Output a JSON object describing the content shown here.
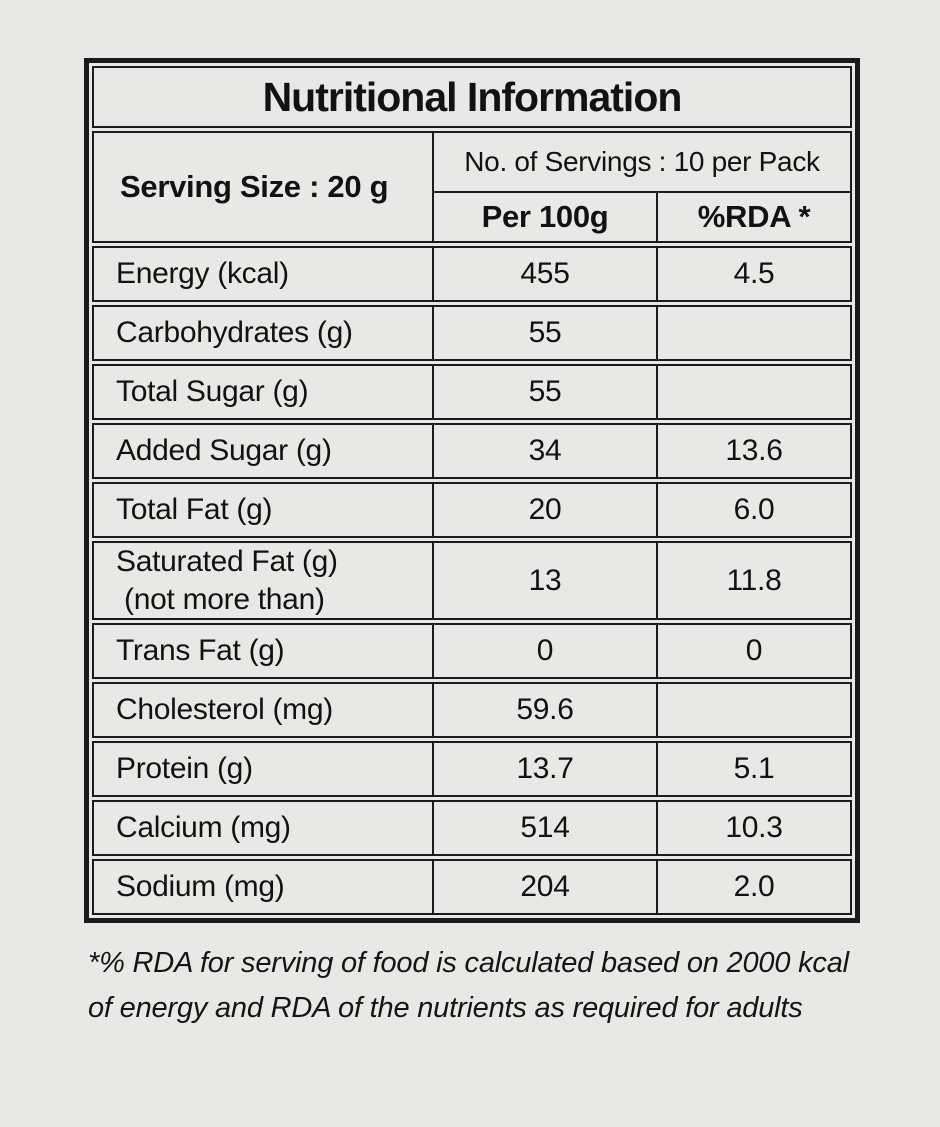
{
  "page": {
    "background_color": "#e8e8e6",
    "border_color": "#1b1b1b",
    "text_color": "#121212"
  },
  "table": {
    "title": "Nutritional Information",
    "serving_size_label": "Serving Size : 20 g",
    "servings_label": "No. of Servings :  10 per Pack",
    "col_headers": {
      "per_100g": "Per 100g",
      "rda": "%RDA *"
    },
    "rows": [
      {
        "label": "Energy (kcal)",
        "per_100g": "455",
        "rda": "4.5"
      },
      {
        "label": "Carbohydrates (g)",
        "per_100g": "55",
        "rda": ""
      },
      {
        "label": "Total Sugar (g)",
        "per_100g": "55",
        "rda": ""
      },
      {
        "label": "Added Sugar (g)",
        "per_100g": "34",
        "rda": "13.6"
      },
      {
        "label": "Total Fat (g)",
        "per_100g": "20",
        "rda": "6.0"
      },
      {
        "label": "Saturated Fat (g)\n (not more than)",
        "per_100g": "13",
        "rda": "11.8"
      },
      {
        "label": "Trans Fat (g)",
        "per_100g": "0",
        "rda": "0"
      },
      {
        "label": "Cholesterol (mg)",
        "per_100g": "59.6",
        "rda": ""
      },
      {
        "label": "Protein (g)",
        "per_100g": "13.7",
        "rda": "5.1"
      },
      {
        "label": "Calcium (mg)",
        "per_100g": "514",
        "rda": "10.3"
      },
      {
        "label": "Sodium (mg)",
        "per_100g": "204",
        "rda": "2.0"
      }
    ],
    "footnote": "*% RDA for serving of food is calculated based on 2000 kcal\nof energy and RDA of the nutrients as required for adults"
  }
}
